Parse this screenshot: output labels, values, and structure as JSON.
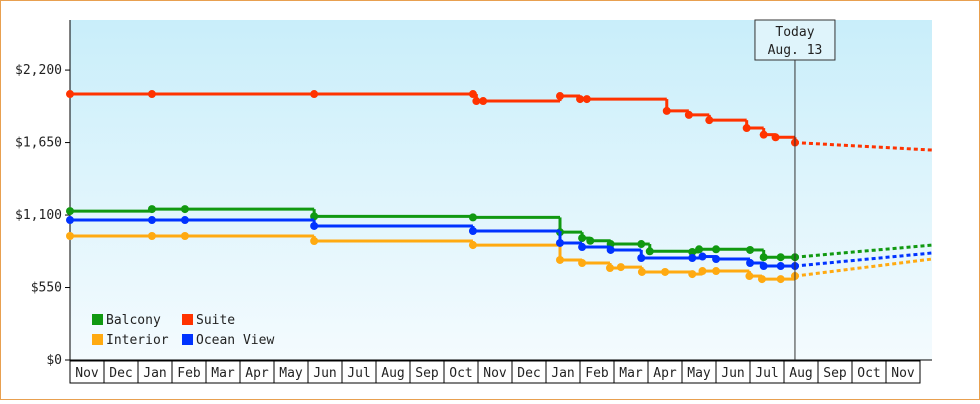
{
  "chart_data": {
    "type": "step",
    "categories": [
      "Nov",
      "Dec",
      "Jan",
      "Feb",
      "Mar",
      "Apr",
      "May",
      "Jun",
      "Jul",
      "Aug",
      "Sep",
      "Oct",
      "Nov",
      "Dec",
      "Jan",
      "Feb",
      "Mar",
      "Apr",
      "May",
      "Jun",
      "Jul",
      "Aug",
      "Sep",
      "Oct",
      "Nov"
    ],
    "xlim": [
      0,
      25.35
    ],
    "ylim": [
      0,
      2580
    ],
    "yticks": [
      {
        "value": 0,
        "label": "$0"
      },
      {
        "value": 550,
        "label": "$550"
      },
      {
        "value": 1100,
        "label": "$1,100"
      },
      {
        "value": 1650,
        "label": "$1,650"
      },
      {
        "value": 2200,
        "label": "$2,200"
      }
    ],
    "today": {
      "x": 21.32,
      "label": [
        "Today",
        "Aug. 13"
      ]
    },
    "series": [
      {
        "name": "Balcony",
        "color": "#119911",
        "x": [
          0,
          2.41,
          3.38,
          7.18,
          11.85,
          14.41,
          15.06,
          15.3,
          15.9,
          16.8,
          17.05,
          18.3,
          18.5,
          19.0,
          20.0,
          20.4,
          20.9,
          21.32
        ],
        "values": [
          1130,
          1145,
          1145,
          1090,
          1082,
          970,
          925,
          905,
          880,
          880,
          825,
          820,
          840,
          840,
          835,
          780,
          780,
          780
        ],
        "forecast_x": [
          21.32,
          25.35
        ],
        "forecast_values": [
          780,
          872
        ]
      },
      {
        "name": "Suite",
        "color": "#ff3300",
        "x": [
          0,
          2.41,
          7.18,
          11.85,
          11.95,
          12.15,
          14.41,
          15.0,
          15.2,
          17.55,
          18.2,
          18.8,
          19.9,
          20.4,
          20.75,
          21.32
        ],
        "values": [
          2018,
          2018,
          2018,
          2018,
          1965,
          1965,
          2003,
          1980,
          1980,
          1890,
          1860,
          1820,
          1760,
          1710,
          1690,
          1650
        ],
        "forecast_x": [
          21.32,
          25.35
        ],
        "forecast_values": [
          1650,
          1593
        ]
      },
      {
        "name": "Interior",
        "color": "#ffaa11",
        "x": [
          0,
          2.41,
          3.38,
          7.18,
          11.85,
          14.41,
          15.06,
          15.88,
          16.2,
          16.82,
          17.5,
          18.3,
          18.6,
          19.0,
          19.98,
          20.35,
          20.9,
          21.32
        ],
        "values": [
          941,
          941,
          941,
          903,
          872,
          759,
          736,
          698,
          705,
          668,
          668,
          652,
          675,
          675,
          637,
          614,
          614,
          637
        ],
        "forecast_x": [
          21.32,
          25.35
        ],
        "forecast_values": [
          637,
          766
        ]
      },
      {
        "name": "Ocean View",
        "color": "#0033ff",
        "x": [
          0,
          2.41,
          3.38,
          7.18,
          11.85,
          14.41,
          15.06,
          15.9,
          16.8,
          18.3,
          18.6,
          19.0,
          20.0,
          20.4,
          20.9,
          21.32
        ],
        "values": [
          1062,
          1062,
          1062,
          1017,
          979,
          888,
          857,
          835,
          774,
          774,
          785,
          766,
          736,
          713,
          713,
          713
        ],
        "forecast_x": [
          21.32,
          25.35
        ],
        "forecast_values": [
          713,
          812
        ]
      }
    ]
  }
}
